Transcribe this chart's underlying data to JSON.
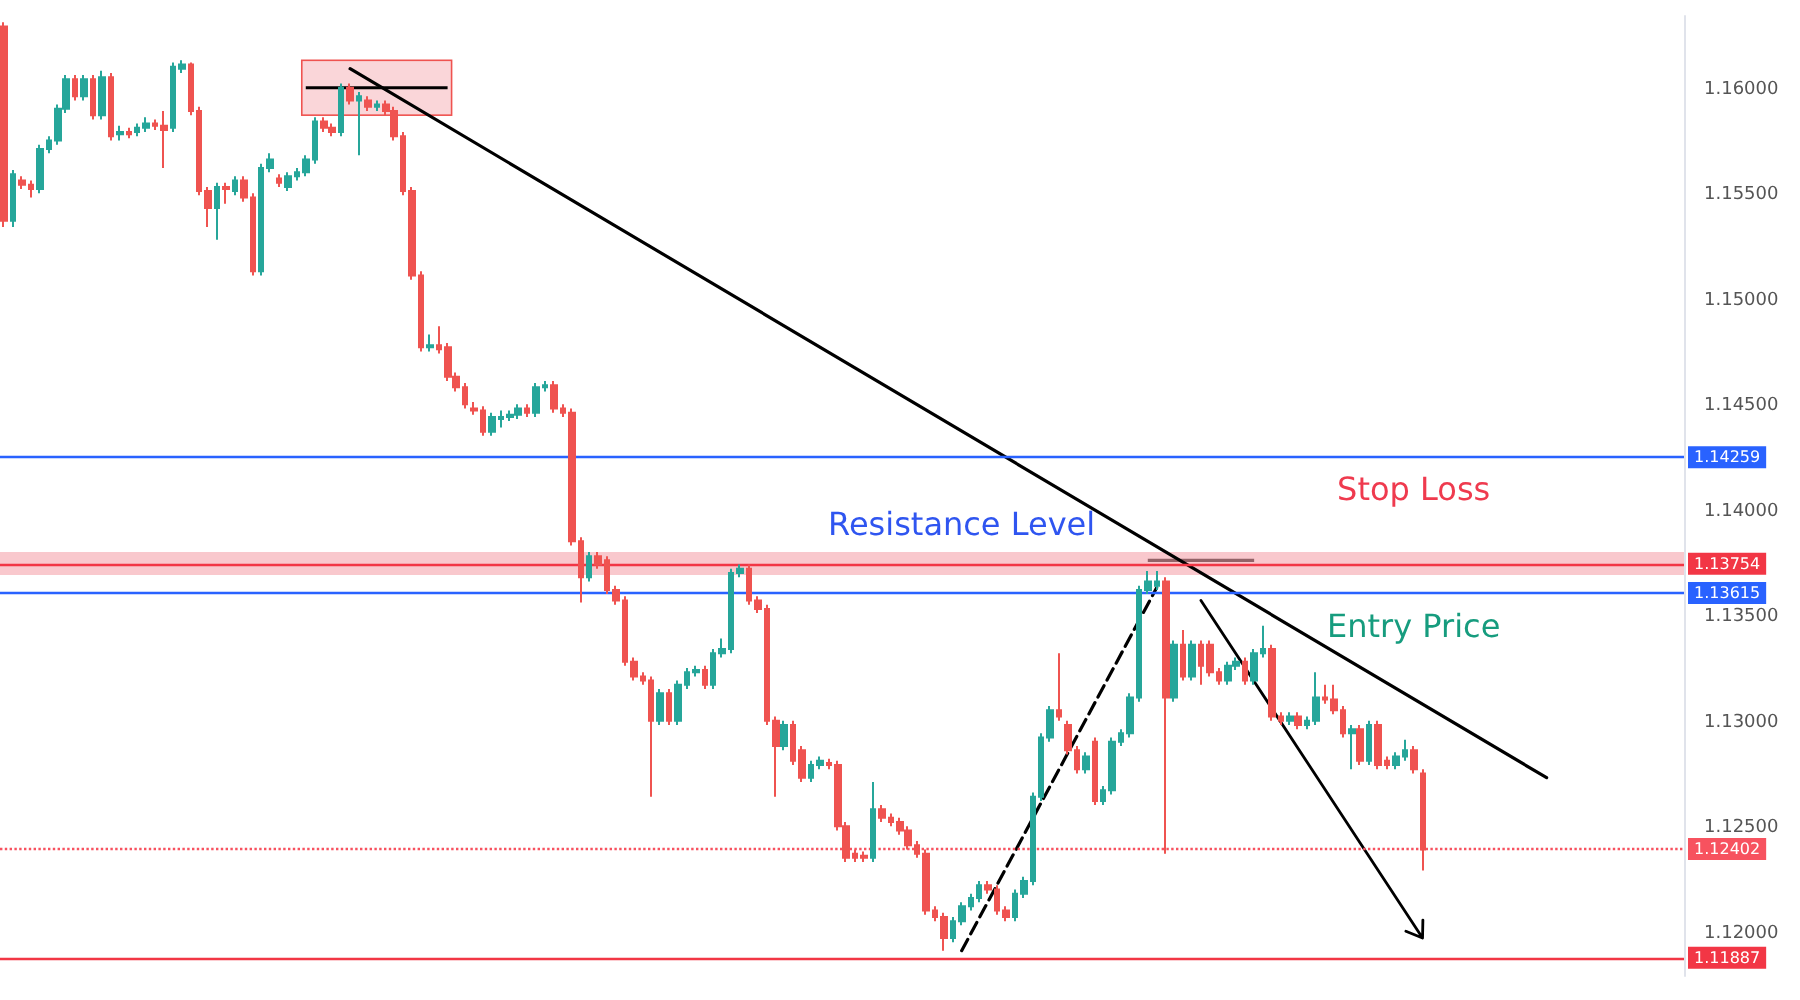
{
  "chart_data": {
    "type": "candlestick",
    "categories": [
      null,
      null,
      null,
      null,
      null,
      null,
      null,
      null,
      null,
      null,
      null,
      null,
      null,
      null,
      null,
      null,
      null,
      null,
      null,
      null,
      null,
      null,
      null,
      null,
      null,
      null,
      null,
      null,
      null,
      null,
      null,
      null,
      null,
      null,
      null,
      null,
      null,
      null,
      null,
      null,
      null,
      null,
      null,
      null,
      null,
      null,
      null,
      null,
      null,
      null,
      null,
      null,
      null,
      null,
      null,
      null,
      null,
      null,
      null,
      null,
      null,
      null,
      null,
      null,
      null,
      null,
      null,
      null,
      null,
      null,
      null,
      null,
      null,
      null,
      null,
      null,
      null,
      null,
      null,
      null,
      null,
      null,
      null,
      null,
      null,
      null,
      null,
      null,
      null,
      null,
      null,
      null,
      null,
      null,
      null,
      null,
      null,
      null,
      null,
      null,
      null,
      null,
      null,
      null,
      null,
      null,
      null,
      null,
      null,
      null,
      null,
      null,
      null,
      null,
      null,
      null,
      null,
      null,
      null,
      null,
      null,
      null,
      null,
      null,
      null,
      null,
      null,
      null,
      null,
      null,
      null,
      null,
      null,
      null,
      null,
      null,
      null,
      null,
      null,
      null,
      null,
      null,
      null,
      null,
      null,
      null,
      null,
      null,
      null,
      null,
      null,
      null,
      null,
      null,
      null,
      null,
      null,
      null,
      null,
      null,
      null,
      null,
      null,
      null,
      null,
      null,
      null,
      null,
      null,
      null,
      null,
      null,
      null,
      null,
      null,
      null,
      null,
      null,
      null,
      null,
      null,
      null,
      null,
      null,
      null,
      null,
      null,
      null,
      null,
      null
    ],
    "ohlc": [
      [
        1.163,
        1.1632,
        1.1535,
        1.1538
      ],
      [
        1.1538,
        1.1562,
        1.1535,
        1.156
      ],
      [
        1.1557,
        1.1559,
        1.1553,
        1.1555
      ],
      [
        1.1555,
        1.1557,
        1.1549,
        1.1553
      ],
      [
        1.1553,
        1.1574,
        1.1551,
        1.1572
      ],
      [
        1.1572,
        1.1578,
        1.157,
        1.1576
      ],
      [
        1.1576,
        1.1593,
        1.1574,
        1.1591
      ],
      [
        1.1591,
        1.1607,
        1.1589,
        1.1605
      ],
      [
        1.1605,
        1.1607,
        1.1595,
        1.1597
      ],
      [
        1.1597,
        1.1607,
        1.1595,
        1.1605
      ],
      [
        1.1605,
        1.1607,
        1.1586,
        1.1588
      ],
      [
        1.1588,
        1.1609,
        1.1586,
        1.1606
      ],
      [
        1.1606,
        1.1608,
        1.1576,
        1.1578
      ],
      [
        1.1579,
        1.1583,
        1.1576,
        1.158
      ],
      [
        1.158,
        1.1582,
        1.1577,
        1.1579
      ],
      [
        1.158,
        1.1584,
        1.1578,
        1.1582
      ],
      [
        1.1582,
        1.1587,
        1.158,
        1.1584
      ],
      [
        1.1584,
        1.1586,
        1.1581,
        1.1583
      ],
      [
        1.1583,
        1.159,
        1.1563,
        1.1581
      ],
      [
        1.1582,
        1.1613,
        1.158,
        1.1611
      ],
      [
        1.161,
        1.1614,
        1.1608,
        1.1612
      ],
      [
        1.1612,
        1.1613,
        1.1588,
        1.159
      ],
      [
        1.159,
        1.1592,
        1.155,
        1.1552
      ],
      [
        1.1552,
        1.1554,
        1.1535,
        1.1544
      ],
      [
        1.1544,
        1.1556,
        1.1529,
        1.1554
      ],
      [
        1.1554,
        1.1556,
        1.1546,
        1.1553
      ],
      [
        1.1552,
        1.1559,
        1.155,
        1.1557
      ],
      [
        1.1557,
        1.1559,
        1.1547,
        1.1549
      ],
      [
        1.1549,
        1.1551,
        1.1512,
        1.1514
      ],
      [
        1.1514,
        1.1565,
        1.1512,
        1.1563
      ],
      [
        1.1563,
        1.157,
        1.1561,
        1.1567
      ],
      [
        1.1558,
        1.156,
        1.1554,
        1.1556
      ],
      [
        1.1554,
        1.1561,
        1.1552,
        1.1559
      ],
      [
        1.1559,
        1.1563,
        1.1557,
        1.1561
      ],
      [
        1.1561,
        1.1569,
        1.1559,
        1.1567
      ],
      [
        1.1567,
        1.1587,
        1.1565,
        1.1585
      ],
      [
        1.1585,
        1.1587,
        1.158,
        1.1582
      ],
      [
        1.1582,
        1.1584,
        1.1578,
        1.158
      ],
      [
        1.158,
        1.1603,
        1.1578,
        1.1601
      ],
      [
        1.1601,
        1.1603,
        1.1593,
        1.1595
      ],
      [
        1.1595,
        1.1599,
        1.1569,
        1.1597
      ],
      [
        1.1595,
        1.1597,
        1.159,
        1.1592
      ],
      [
        1.1592,
        1.1595,
        1.159,
        1.1593
      ],
      [
        1.1593,
        1.1595,
        1.1588,
        1.159
      ],
      [
        1.159,
        1.1592,
        1.1576,
        1.1578
      ],
      [
        1.1578,
        1.158,
        1.155,
        1.1552
      ],
      [
        1.1552,
        1.1554,
        1.151,
        1.1512
      ],
      [
        1.1512,
        1.1514,
        1.1476,
        1.1478
      ],
      [
        1.1478,
        1.1484,
        1.1476,
        1.1479
      ],
      [
        1.1479,
        1.1488,
        1.1475,
        1.1477
      ],
      [
        1.1478,
        1.148,
        1.1462,
        1.1464
      ],
      [
        1.1464,
        1.1466,
        1.1457,
        1.1459
      ],
      [
        1.1459,
        1.1461,
        1.1449,
        1.1451
      ],
      [
        1.1449,
        1.1452,
        1.1446,
        1.1448
      ],
      [
        1.1448,
        1.145,
        1.1436,
        1.1438
      ],
      [
        1.1438,
        1.1447,
        1.1436,
        1.1445
      ],
      [
        1.1444,
        1.1448,
        1.144,
        1.1445
      ],
      [
        1.1445,
        1.1448,
        1.1443,
        1.1446
      ],
      [
        1.1446,
        1.1451,
        1.1444,
        1.1449
      ],
      [
        1.1449,
        1.1451,
        1.1445,
        1.1447
      ],
      [
        1.1447,
        1.1461,
        1.1445,
        1.1459
      ],
      [
        1.1459,
        1.1462,
        1.1457,
        1.146
      ],
      [
        1.146,
        1.1462,
        1.1447,
        1.1449
      ],
      [
        1.1449,
        1.1451,
        1.1445,
        1.1447
      ],
      [
        1.1447,
        1.1449,
        1.1384,
        1.1386
      ],
      [
        1.1386,
        1.1388,
        1.1357,
        1.1369
      ],
      [
        1.1369,
        1.1381,
        1.1367,
        1.1379
      ],
      [
        1.1379,
        1.1381,
        1.1373,
        1.1375
      ],
      [
        1.1377,
        1.1379,
        1.1361,
        1.1363
      ],
      [
        1.1363,
        1.1365,
        1.1356,
        1.1358
      ],
      [
        1.1358,
        1.136,
        1.1327,
        1.1329
      ],
      [
        1.1329,
        1.1331,
        1.132,
        1.1322
      ],
      [
        1.1322,
        1.1324,
        1.1318,
        1.132
      ],
      [
        1.132,
        1.1322,
        1.1265,
        1.1301
      ],
      [
        1.1301,
        1.1316,
        1.1299,
        1.1314
      ],
      [
        1.1314,
        1.1316,
        1.1299,
        1.1301
      ],
      [
        1.1301,
        1.132,
        1.1299,
        1.1318
      ],
      [
        1.1318,
        1.1326,
        1.1316,
        1.1324
      ],
      [
        1.1324,
        1.1327,
        1.1322,
        1.1325
      ],
      [
        1.1325,
        1.1327,
        1.1316,
        1.1318
      ],
      [
        1.1318,
        1.1335,
        1.1316,
        1.1333
      ],
      [
        1.1333,
        1.134,
        1.1331,
        1.1335
      ],
      [
        1.1335,
        1.1373,
        1.1333,
        1.1371
      ],
      [
        1.1371,
        1.1375,
        1.1369,
        1.1373
      ],
      [
        1.1373,
        1.1375,
        1.1356,
        1.1358
      ],
      [
        1.1358,
        1.136,
        1.1352,
        1.1354
      ],
      [
        1.1354,
        1.1356,
        1.1299,
        1.1301
      ],
      [
        1.1301,
        1.1303,
        1.1265,
        1.1289
      ],
      [
        1.1289,
        1.1301,
        1.1287,
        1.1299
      ],
      [
        1.1299,
        1.1301,
        1.128,
        1.1282
      ],
      [
        1.1287,
        1.1289,
        1.1272,
        1.1274
      ],
      [
        1.1274,
        1.1282,
        1.1272,
        1.128
      ],
      [
        1.128,
        1.1284,
        1.1278,
        1.1282
      ],
      [
        1.1281,
        1.1283,
        1.1278,
        1.128
      ],
      [
        1.128,
        1.1282,
        1.1249,
        1.1251
      ],
      [
        1.1251,
        1.1253,
        1.1234,
        1.1236
      ],
      [
        1.1238,
        1.124,
        1.1234,
        1.1236
      ],
      [
        1.1237,
        1.1239,
        1.1234,
        1.1236
      ],
      [
        1.1236,
        1.1272,
        1.1234,
        1.1259
      ],
      [
        1.1259,
        1.1261,
        1.1253,
        1.1255
      ],
      [
        1.1255,
        1.1257,
        1.1251,
        1.1253
      ],
      [
        1.1253,
        1.1255,
        1.1247,
        1.1249
      ],
      [
        1.1249,
        1.1251,
        1.124,
        1.1242
      ],
      [
        1.1242,
        1.1244,
        1.1236,
        1.1238
      ],
      [
        1.1238,
        1.124,
        1.1209,
        1.1211
      ],
      [
        1.1211,
        1.1213,
        1.1206,
        1.1208
      ],
      [
        1.1208,
        1.121,
        1.1192,
        1.1198
      ],
      [
        1.1198,
        1.1208,
        1.1196,
        1.1206
      ],
      [
        1.1206,
        1.1215,
        1.1204,
        1.1213
      ],
      [
        1.1213,
        1.1219,
        1.1211,
        1.1217
      ],
      [
        1.1217,
        1.1225,
        1.1215,
        1.1223
      ],
      [
        1.1223,
        1.1225,
        1.1219,
        1.1221
      ],
      [
        1.1221,
        1.1223,
        1.1209,
        1.1211
      ],
      [
        1.1211,
        1.1213,
        1.1206,
        1.1208
      ],
      [
        1.1208,
        1.1221,
        1.1206,
        1.1219
      ],
      [
        1.1219,
        1.1227,
        1.1217,
        1.1225
      ],
      [
        1.1225,
        1.1267,
        1.1223,
        1.1265
      ],
      [
        1.1265,
        1.1295,
        1.1263,
        1.1293
      ],
      [
        1.1293,
        1.1308,
        1.1291,
        1.1306
      ],
      [
        1.1306,
        1.1333,
        1.1301,
        1.1303
      ],
      [
        1.1299,
        1.1301,
        1.1285,
        1.1287
      ],
      [
        1.1287,
        1.1289,
        1.1276,
        1.1278
      ],
      [
        1.1278,
        1.1286,
        1.1276,
        1.1284
      ],
      [
        1.1291,
        1.1293,
        1.1261,
        1.1263
      ],
      [
        1.1263,
        1.127,
        1.1261,
        1.1268
      ],
      [
        1.1268,
        1.1293,
        1.1266,
        1.1291
      ],
      [
        1.1291,
        1.1297,
        1.1289,
        1.1295
      ],
      [
        1.1295,
        1.1314,
        1.1293,
        1.1312
      ],
      [
        1.1312,
        1.1365,
        1.131,
        1.1363
      ],
      [
        1.1363,
        1.1372,
        1.1361,
        1.1367
      ],
      [
        1.1365,
        1.1372,
        1.1363,
        1.1367
      ],
      [
        1.1367,
        1.1369,
        1.1238,
        1.1312
      ],
      [
        1.1312,
        1.1339,
        1.131,
        1.1337
      ],
      [
        1.1337,
        1.1344,
        1.132,
        1.1322
      ],
      [
        1.1322,
        1.1339,
        1.132,
        1.1337
      ],
      [
        1.1337,
        1.1339,
        1.1318,
        1.1327
      ],
      [
        1.1337,
        1.1339,
        1.1322,
        1.1324
      ],
      [
        1.1324,
        1.1326,
        1.1318,
        1.132
      ],
      [
        1.132,
        1.1329,
        1.1318,
        1.1327
      ],
      [
        1.1327,
        1.1331,
        1.1325,
        1.1329
      ],
      [
        1.1329,
        1.1331,
        1.1318,
        1.132
      ],
      [
        1.132,
        1.1335,
        1.1318,
        1.1333
      ],
      [
        1.1333,
        1.1346,
        1.1331,
        1.1335
      ],
      [
        1.1335,
        1.1337,
        1.1301,
        1.1303
      ],
      [
        1.1303,
        1.1305,
        1.1299,
        1.1301
      ],
      [
        1.1301,
        1.1305,
        1.1299,
        1.1303
      ],
      [
        1.1303,
        1.1305,
        1.1297,
        1.1299
      ],
      [
        1.1299,
        1.1303,
        1.1297,
        1.1301
      ],
      [
        1.1301,
        1.1324,
        1.1299,
        1.1312
      ],
      [
        1.1312,
        1.1318,
        1.1309,
        1.1311
      ],
      [
        1.1311,
        1.1318,
        1.1304,
        1.1306
      ],
      [
        1.1306,
        1.1308,
        1.1293,
        1.1295
      ],
      [
        1.1295,
        1.1299,
        1.1278,
        1.1297
      ],
      [
        1.1297,
        1.1299,
        1.128,
        1.1282
      ],
      [
        1.1282,
        1.1301,
        1.128,
        1.1299
      ],
      [
        1.1299,
        1.1301,
        1.1278,
        1.128
      ],
      [
        1.1282,
        1.1284,
        1.1278,
        1.128
      ],
      [
        1.128,
        1.1286,
        1.1278,
        1.1284
      ],
      [
        1.1284,
        1.1292,
        1.1282,
        1.1287
      ],
      [
        1.1287,
        1.1289,
        1.1276,
        1.1278
      ],
      [
        1.1276,
        1.1278,
        1.123,
        1.124
      ],
      null,
      null,
      null,
      null,
      null,
      null,
      null,
      null,
      null,
      null,
      null,
      null,
      null,
      null,
      null,
      null,
      null,
      null,
      null,
      null,
      null,
      null,
      null,
      null,
      null,
      null,
      null,
      null,
      null
    ],
    "series": [
      {
        "type": "line",
        "color": "#000000",
        "values": [
          null,
          null,
          null,
          null,
          null,
          null,
          null,
          null,
          null,
          null,
          null,
          null,
          null,
          null,
          null,
          null,
          null,
          null,
          null,
          null,
          null,
          null,
          null,
          null,
          null,
          null,
          null,
          null,
          null,
          null,
          null,
          null,
          null,
          null,
          null,
          null,
          null,
          null,
          null,
          1.161,
          null,
          null,
          null,
          null,
          null,
          null,
          null,
          null,
          null,
          null,
          null,
          null,
          null,
          null,
          null,
          null,
          null,
          null,
          null,
          null,
          null,
          null,
          null,
          null,
          null,
          null,
          null,
          null,
          null,
          null,
          null,
          null,
          null,
          null,
          null,
          null,
          null,
          null,
          null,
          null,
          null,
          null,
          null,
          null,
          null,
          null,
          null,
          null,
          null,
          null,
          null,
          null,
          null,
          null,
          null,
          null,
          null,
          null,
          null,
          null,
          null,
          null,
          null,
          null,
          null,
          null,
          null,
          null,
          null,
          null,
          null,
          null,
          null,
          null,
          null,
          null,
          null,
          null,
          null,
          null,
          null,
          null,
          null,
          null,
          null,
          null,
          null,
          null,
          null,
          null,
          null,
          null,
          null,
          null,
          null,
          null,
          null,
          null,
          null,
          null,
          null,
          null,
          null,
          null,
          null,
          null,
          null,
          null,
          null,
          null,
          null,
          null,
          null,
          null,
          null,
          null,
          null,
          null,
          null,
          null,
          null,
          null,
          null,
          null,
          null,
          null,
          null,
          null,
          null,
          null,
          null,
          null,
          null,
          null,
          1.1274,
          null,
          null,
          null,
          null,
          null,
          null,
          null,
          null,
          null,
          null,
          null,
          null,
          null,
          null,
          null
        ]
      },
      {
        "type": "line",
        "color": "#000000",
        "line_style": "dashed",
        "values": [
          null,
          null,
          null,
          null,
          null,
          null,
          null,
          null,
          null,
          null,
          null,
          null,
          null,
          null,
          null,
          null,
          null,
          null,
          null,
          null,
          null,
          null,
          null,
          null,
          null,
          null,
          null,
          null,
          null,
          null,
          null,
          null,
          null,
          null,
          null,
          null,
          null,
          null,
          null,
          null,
          null,
          null,
          null,
          null,
          null,
          null,
          null,
          null,
          null,
          null,
          null,
          null,
          null,
          null,
          null,
          null,
          null,
          null,
          null,
          null,
          null,
          null,
          null,
          null,
          null,
          null,
          null,
          null,
          null,
          null,
          null,
          null,
          null,
          null,
          null,
          null,
          null,
          null,
          null,
          null,
          null,
          null,
          null,
          null,
          null,
          null,
          null,
          null,
          null,
          null,
          null,
          null,
          null,
          null,
          null,
          null,
          null,
          null,
          null,
          null,
          null,
          null,
          null,
          null,
          null,
          null,
          null,
          null,
          1.1192,
          null,
          null,
          null,
          null,
          null,
          null,
          null,
          null,
          null,
          null,
          null,
          null,
          null,
          null,
          null,
          null,
          null,
          null,
          null,
          null,
          null,
          1.1364,
          null,
          null,
          null,
          null,
          null,
          null,
          null,
          null,
          null,
          null,
          null,
          null,
          null,
          null,
          null,
          null,
          null,
          null,
          null,
          null,
          null,
          null,
          null,
          null,
          null,
          null,
          null,
          null,
          null,
          null,
          null,
          null,
          null,
          null,
          null,
          null,
          null,
          null,
          null,
          null,
          null,
          null,
          null,
          null,
          null,
          null,
          null,
          null,
          null,
          null,
          null,
          null,
          null,
          null,
          null,
          null,
          null,
          null,
          null
        ]
      }
    ],
    "ref_lines": [
      {
        "axis": "y",
        "value": 1.14259,
        "label": "1.14259",
        "color": "#2962ff"
      },
      {
        "axis": "y",
        "value": 1.13754,
        "label": "1.13754",
        "color": "#f23645"
      },
      {
        "axis": "y",
        "value": 1.13615,
        "label": "1.13615",
        "color": "#2962ff"
      },
      {
        "axis": "y",
        "value": 1.12402,
        "label": "1.12402",
        "color": "#f7525f",
        "line_style": "dotted"
      },
      {
        "axis": "y",
        "value": 1.11887,
        "label": "1.11887",
        "color": "#f23645"
      }
    ],
    "bands": [
      {
        "axis": "y",
        "from": 1.137,
        "to": 1.1381,
        "color": "#f5a3ab"
      }
    ],
    "annotations": [
      "Resistance Level",
      "Stop Loss",
      "Entry Price"
    ],
    "ylim": [
      1.118,
      1.1635
    ],
    "yticks": [
      {
        "value": 1.12,
        "label": "1.12000"
      },
      {
        "value": 1.125,
        "label": "1.12500"
      },
      {
        "value": 1.13,
        "label": "1.13000"
      },
      {
        "value": 1.135,
        "label": "1.13500"
      },
      {
        "value": 1.14,
        "label": "1.14000"
      },
      {
        "value": 1.145,
        "label": "1.14500"
      },
      {
        "value": 1.15,
        "label": "1.15000"
      },
      {
        "value": 1.155,
        "label": "1.15500"
      },
      {
        "value": 1.16,
        "label": "1.16000"
      }
    ],
    "grid": false,
    "marker": "none"
  }
}
